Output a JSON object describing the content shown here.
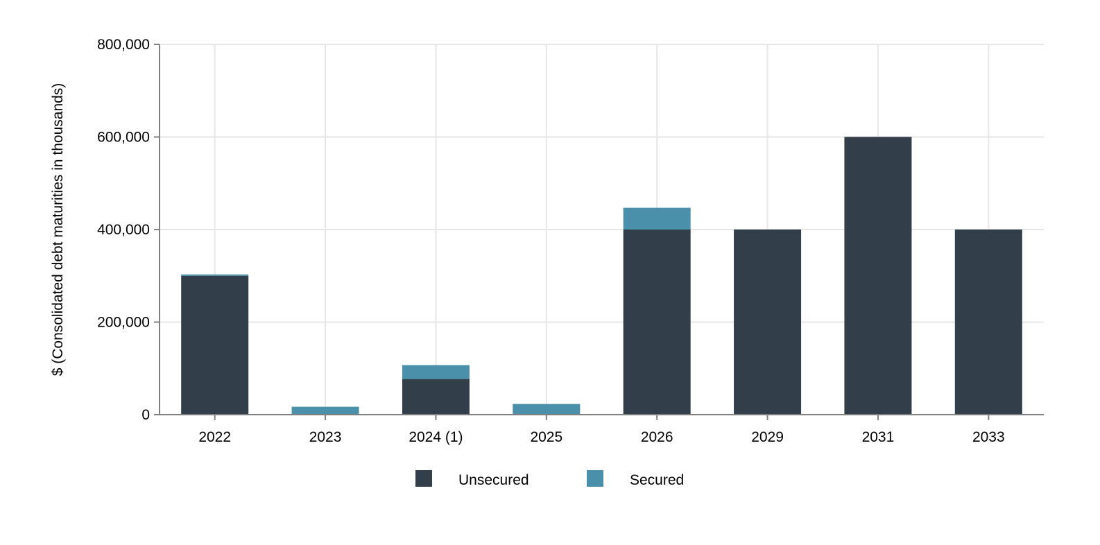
{
  "chart_data": {
    "type": "bar",
    "stacked": true,
    "title": "",
    "xlabel": "",
    "ylabel": "$ (Consolidated debt maturities in thousands)",
    "categories": [
      "2022",
      "2023",
      "2024 (1)",
      "2025",
      "2026",
      "2029",
      "2031",
      "2033"
    ],
    "series": [
      {
        "name": "Unsecured",
        "color": "#323f4a",
        "values": [
          300000,
          0,
          77000,
          0,
          400000,
          400000,
          600000,
          400000
        ]
      },
      {
        "name": "Secured",
        "color": "#4b90aa",
        "values": [
          3000,
          17000,
          30000,
          23000,
          47000,
          0,
          0,
          0
        ]
      }
    ],
    "ylim": [
      0,
      800000
    ],
    "yticks": [
      0,
      200000,
      400000,
      600000,
      800000
    ],
    "ytick_labels": [
      "0",
      "200,000",
      "400,000",
      "600,000",
      "800,000"
    ],
    "grid": true,
    "legend_position": "bottom-center"
  }
}
